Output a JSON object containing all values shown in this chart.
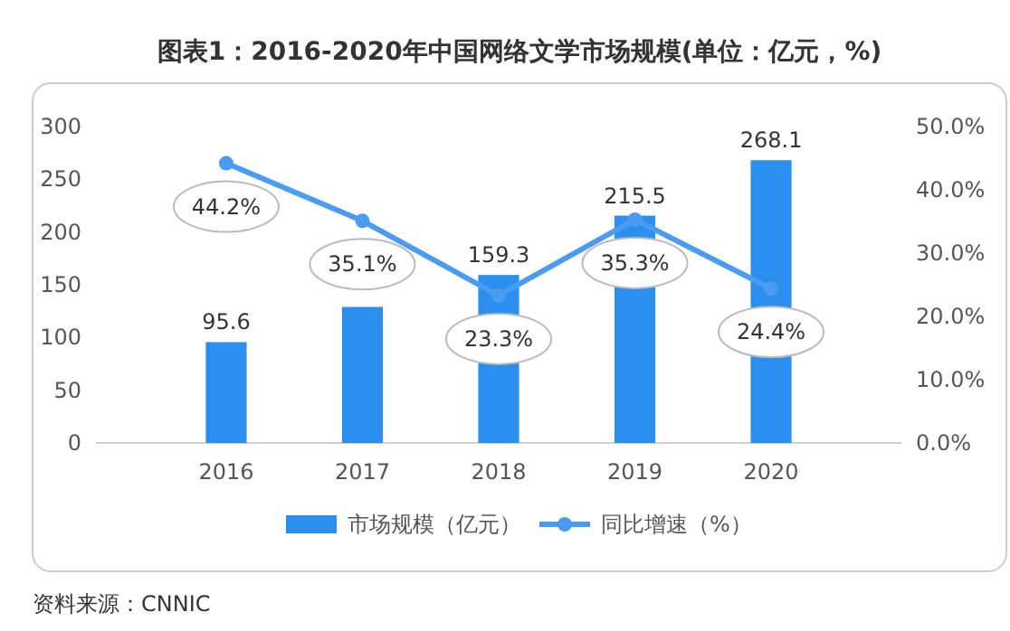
{
  "chart_data": {
    "type": "bar",
    "title": "图表1：2016-2020年中国网络文学市场规模(单位：亿元，%)",
    "categories": [
      "2016",
      "2017",
      "2018",
      "2019",
      "2020"
    ],
    "series": [
      {
        "name": "市场规模（亿元）",
        "color": "#2b8ff0",
        "values": [
          95.6,
          129,
          159.3,
          215.5,
          268.1
        ],
        "value_labels": [
          "95.6",
          null,
          "159.3",
          "215.5",
          "268.1"
        ]
      },
      {
        "name": "同比增速（%）",
        "type": "line",
        "axis": "y2",
        "color": "#4a9cf0",
        "marker": "circle",
        "values": [
          44.2,
          35.1,
          23.3,
          35.3,
          24.4
        ],
        "value_labels": [
          "44.2%",
          "35.1%",
          "23.3%",
          "35.3%",
          "24.4%"
        ]
      }
    ],
    "ylim": [
      0,
      300
    ],
    "yticks": [
      0,
      50,
      100,
      150,
      200,
      250,
      300
    ],
    "y2lim": [
      0,
      50
    ],
    "y2ticks": [
      {
        "value": 0,
        "label": "0.0%"
      },
      {
        "value": 10,
        "label": "10.0%"
      },
      {
        "value": 20,
        "label": "20.0%"
      },
      {
        "value": 30,
        "label": "30.0%"
      },
      {
        "value": 40,
        "label": "40.0%"
      },
      {
        "value": 50,
        "label": "50.0%"
      }
    ],
    "legend": "bottom",
    "grid": false,
    "annotations": [
      "资料来源：CNNIC"
    ]
  }
}
